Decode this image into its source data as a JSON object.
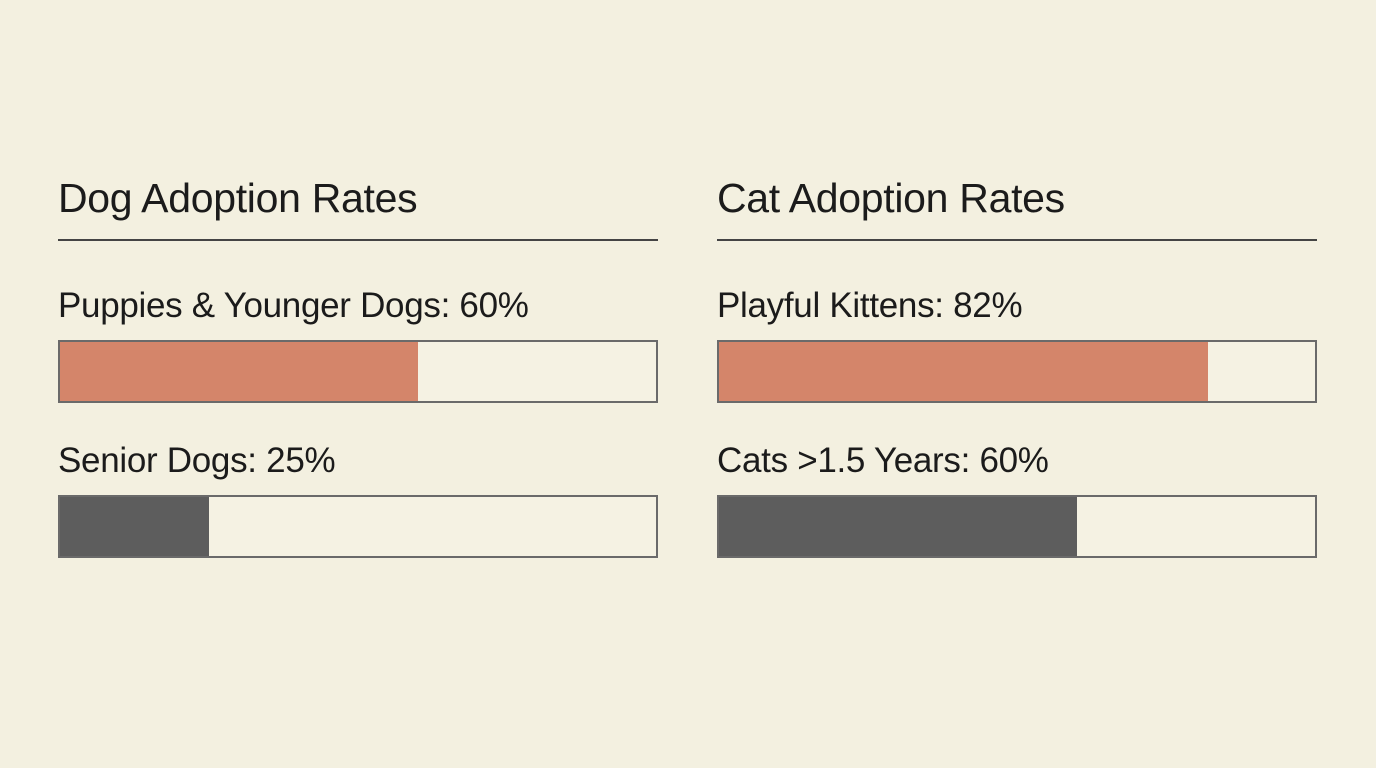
{
  "chart_data": [
    {
      "type": "bar",
      "title": "Dog Adoption Rates",
      "orientation": "horizontal",
      "max": 100,
      "bars": [
        {
          "label": "Puppies & Younger Dogs: 60%",
          "category": "Puppies & Younger Dogs",
          "value": 60,
          "color": "#d4856a"
        },
        {
          "label": "Senior Dogs: 25%",
          "category": "Senior Dogs",
          "value": 25,
          "color": "#5d5d5d"
        }
      ]
    },
    {
      "type": "bar",
      "title": "Cat Adoption Rates",
      "orientation": "horizontal",
      "max": 100,
      "bars": [
        {
          "label": "Playful Kittens: 82%",
          "category": "Playful Kittens",
          "value": 82,
          "color": "#d4856a"
        },
        {
          "label": "Cats >1.5 Years: 60%",
          "category": "Cats >1.5 Years",
          "value": 60,
          "color": "#5d5d5d"
        }
      ]
    }
  ],
  "colors": {
    "background": "#f3f0e0",
    "text": "#1b1b1b",
    "rule": "#444444",
    "track_border": "#6a6a6a",
    "track_fill": "#f5f2e3"
  }
}
